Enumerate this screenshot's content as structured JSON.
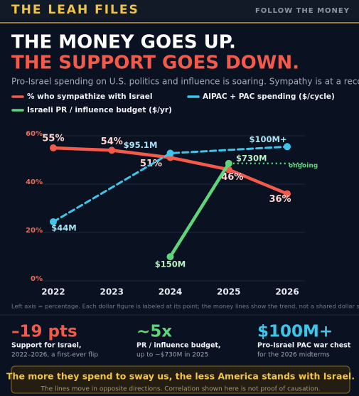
{
  "header": {
    "brand": "THE LEAH FILES",
    "tagline": "FOLLOW THE MONEY"
  },
  "title_line1": "THE MONEY GOES UP.",
  "title_line2": "THE SUPPORT GOES DOWN.",
  "subtitle": "Pro-Israel spending on U.S. politics and influence is soaring. Sympathy is at a record low",
  "chart_data": {
    "type": "line",
    "xlim": [
      2021.8,
      2026.3
    ],
    "xticks": [
      2022,
      2023,
      2024,
      2025,
      2026
    ],
    "ylim": [
      0,
      62
    ],
    "yticks": [
      {
        "value": 0,
        "label": "0%"
      },
      {
        "value": 20,
        "label": "20%"
      },
      {
        "value": 40,
        "label": "40%"
      },
      {
        "value": 60,
        "label": "60%"
      }
    ],
    "grid": true,
    "series": [
      {
        "name": "% who sympathize with Israel",
        "color": "#f25a4b",
        "x": [
          2022,
          2023,
          2024,
          2025,
          2026
        ],
        "values": [
          55,
          54,
          51,
          46,
          36
        ],
        "value_labels": [
          "55%",
          "54%",
          "51%",
          "46%",
          "36%"
        ]
      },
      {
        "name": "AIPAC + PAC spending ($/cycle)",
        "color": "#3ec6ea",
        "dashed": true,
        "ylim": [
          0,
          111700000
        ],
        "x": [
          2022,
          2024,
          2026
        ],
        "values": [
          44000000,
          95100000,
          100000000
        ],
        "value_labels": [
          "$44M",
          "$95.1M",
          "$100M+"
        ]
      },
      {
        "name": "Israeli PR / influence budget ($/yr)",
        "color": "#5fd47a",
        "ylim": [
          0,
          932000000
        ],
        "x": [
          2024,
          2025
        ],
        "values": [
          150000000,
          730000000
        ],
        "value_labels": [
          "$150M",
          "$730M"
        ],
        "annotation": "ongoing"
      }
    ],
    "note": "Left axis = percentage. Each dollar figure is labeled at its point; the money lines show the trend, not a shared dollar scale."
  },
  "stats": [
    {
      "big": "–19 pts",
      "label": "Support for Israel,",
      "detail": "2022–2026, a first-ever flip"
    },
    {
      "big": "~5x",
      "label": "PR / influence budget,",
      "detail": "up to ~$730M in 2025"
    },
    {
      "big": "$100M+",
      "label": "Pro-Israel PAC war chest",
      "detail": "for the 2026 midterms"
    }
  ],
  "footer": {
    "headline": "The more they spend to sway us, the less America stands with Israel.",
    "caveat": "The lines move in opposite directions. Correlation shown here is not proof of causation."
  }
}
